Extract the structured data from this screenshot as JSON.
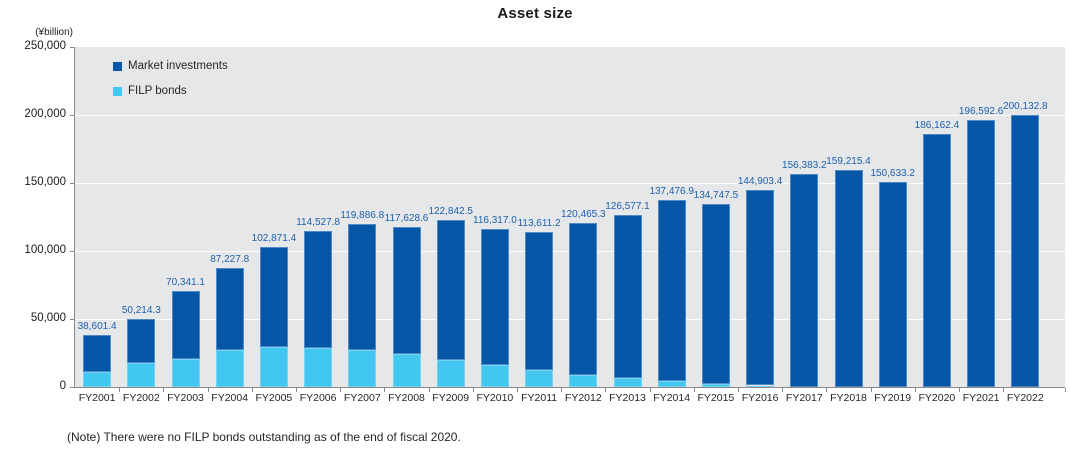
{
  "title": "Asset size",
  "y_axis_unit": "(¥billion)",
  "note": "(Note) There were no FILP bonds outstanding as of the end of fiscal 2020.",
  "legend": {
    "market_label": "Market investments",
    "filp_label": "FILP bonds"
  },
  "colors": {
    "market_blue": "#0556a6",
    "filp_light_blue": "#41c7f0",
    "plot_background": "#e6e7e8",
    "gridline": "#fdfdfd",
    "axis_gray": "#8a8a8a",
    "value_label_blue": "#1d60ab"
  },
  "chart_data": {
    "type": "bar",
    "stacked": true,
    "title": "Asset size",
    "ylabel": "(¥billion)",
    "xlabel": "",
    "ylim": [
      0,
      250000
    ],
    "y_ticks": [
      0,
      50000,
      100000,
      150000,
      200000,
      250000
    ],
    "y_tick_labels": [
      "0",
      "50,000",
      "100,000",
      "150,000",
      "200,000",
      "250,000"
    ],
    "grid": true,
    "legend_position": "top-left-inside",
    "categories": [
      "FY2001",
      "FY2002",
      "FY2003",
      "FY2004",
      "FY2005",
      "FY2006",
      "FY2007",
      "FY2008",
      "FY2009",
      "FY2010",
      "FY2011",
      "FY2012",
      "FY2013",
      "FY2014",
      "FY2015",
      "FY2016",
      "FY2017",
      "FY2018",
      "FY2019",
      "FY2020",
      "FY2021",
      "FY2022"
    ],
    "series": [
      {
        "name": "Market investments",
        "color": "#0556a6",
        "values": [
          27401.4,
          32414.3,
          49541.1,
          60127.8,
          73571.4,
          86127.8,
          92986.8,
          93728.6,
          103342.5,
          100217.0,
          101211.2,
          111765.3,
          120077.1,
          133176.9,
          132347.5,
          143803.4,
          156383.2,
          159215.4,
          150633.2,
          186162.4,
          196592.6,
          200132.8
        ]
      },
      {
        "name": "FILP bonds",
        "color": "#41c7f0",
        "values": [
          11200,
          17800,
          20800,
          27100,
          29300,
          28400,
          26900,
          23900,
          19500,
          16100,
          12400,
          8700,
          6500,
          4300,
          2400,
          1100,
          0,
          0,
          0,
          0,
          0,
          0
        ]
      }
    ],
    "totals": [
      38601.4,
      50214.3,
      70341.1,
      87227.8,
      102871.4,
      114527.8,
      119886.8,
      117628.6,
      122842.5,
      116317.0,
      113611.2,
      120465.3,
      126577.1,
      137476.9,
      134747.5,
      144903.4,
      156383.2,
      159215.4,
      150633.2,
      186162.4,
      196592.6,
      200132.8
    ],
    "total_labels": [
      "38,601.4",
      "50,214.3",
      "70,341.1",
      "87,227.8",
      "102,871.4",
      "114,527.8",
      "119,886.8",
      "117,628.6",
      "122,842.5",
      "116,317.0",
      "113,611.2",
      "120,465.3",
      "126,577.1",
      "137,476.9",
      "134,747.5",
      "144,903.4",
      "156,383.2",
      "159,215.4",
      "150,633.2",
      "186,162.4",
      "196,592.6",
      "200,132.8"
    ]
  }
}
